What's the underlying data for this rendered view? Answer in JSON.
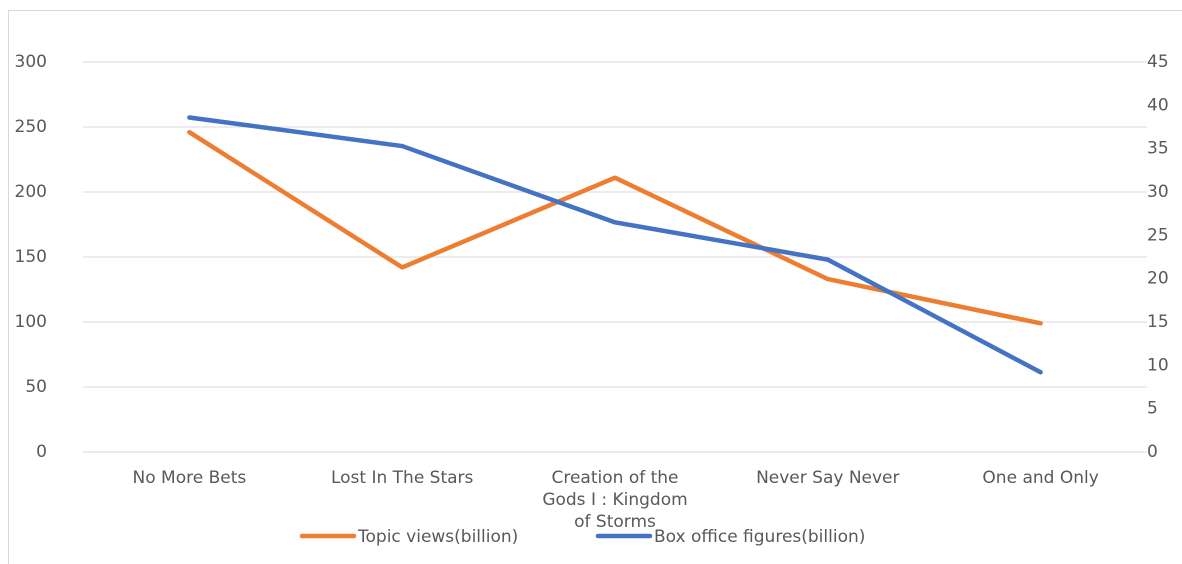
{
  "chart_data": {
    "type": "line",
    "categories": [
      "No More Bets",
      "Lost In The Stars",
      "Creation of the Gods I : Kingdom of Storms",
      "Never Say Never",
      "One and Only"
    ],
    "series": [
      {
        "name": "Topic views(billion)",
        "color": "#ed7d31",
        "values": [
          246,
          142,
          211,
          133,
          99
        ]
      },
      {
        "name": "Box office figures(billion)",
        "color": "#4472c4",
        "values": [
          38.6,
          35.3,
          26.5,
          22.2,
          9.2
        ],
        "axis": "y2"
      }
    ],
    "ylim": [
      0,
      300
    ],
    "yticks": [
      0,
      50,
      100,
      150,
      200,
      250,
      300
    ],
    "y2lim": [
      0,
      45
    ],
    "y2ticks": [
      0,
      5,
      10,
      15,
      20,
      25,
      30,
      35,
      40,
      45
    ],
    "grid": true,
    "legend": "bottom"
  }
}
